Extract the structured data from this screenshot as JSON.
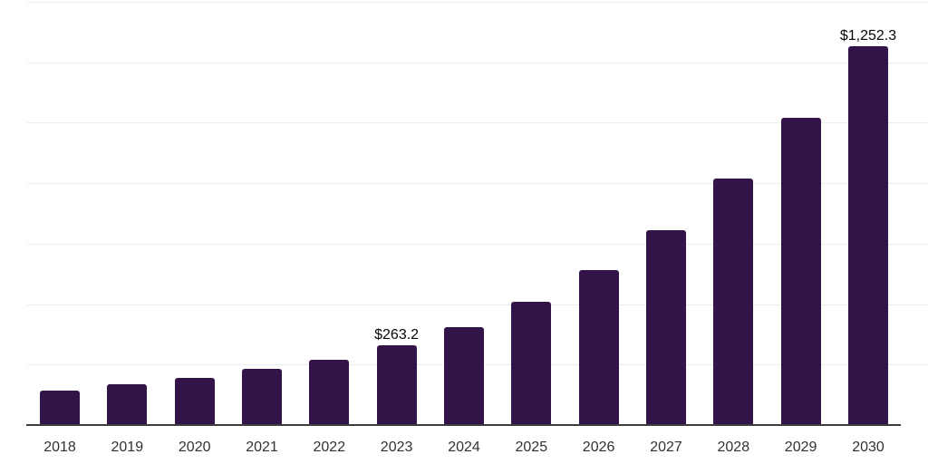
{
  "chart_data": {
    "type": "bar",
    "title": "",
    "xlabel": "",
    "ylabel": "",
    "categories": [
      "2018",
      "2019",
      "2020",
      "2021",
      "2022",
      "2023",
      "2024",
      "2025",
      "2026",
      "2027",
      "2028",
      "2029",
      "2030"
    ],
    "values": [
      113,
      134,
      155,
      185,
      215,
      263.2,
      323,
      407,
      514,
      646,
      816,
      1017,
      1252.3
    ],
    "data_labels": [
      "",
      "",
      "",
      "",
      "",
      "$263.2",
      "",
      "",
      "",
      "",
      "",
      "",
      "$1,252.3"
    ],
    "ylim": [
      0,
      1400
    ],
    "gridline_step": 200,
    "grid": true,
    "y_tick_labels_visible": false,
    "legend": false,
    "colors": {
      "bar": "#331448",
      "axis": "#3d3d3d",
      "gridline": "#ececec",
      "tick_label": "#323232",
      "value_label": "#060606",
      "background": "#ffffff"
    }
  }
}
